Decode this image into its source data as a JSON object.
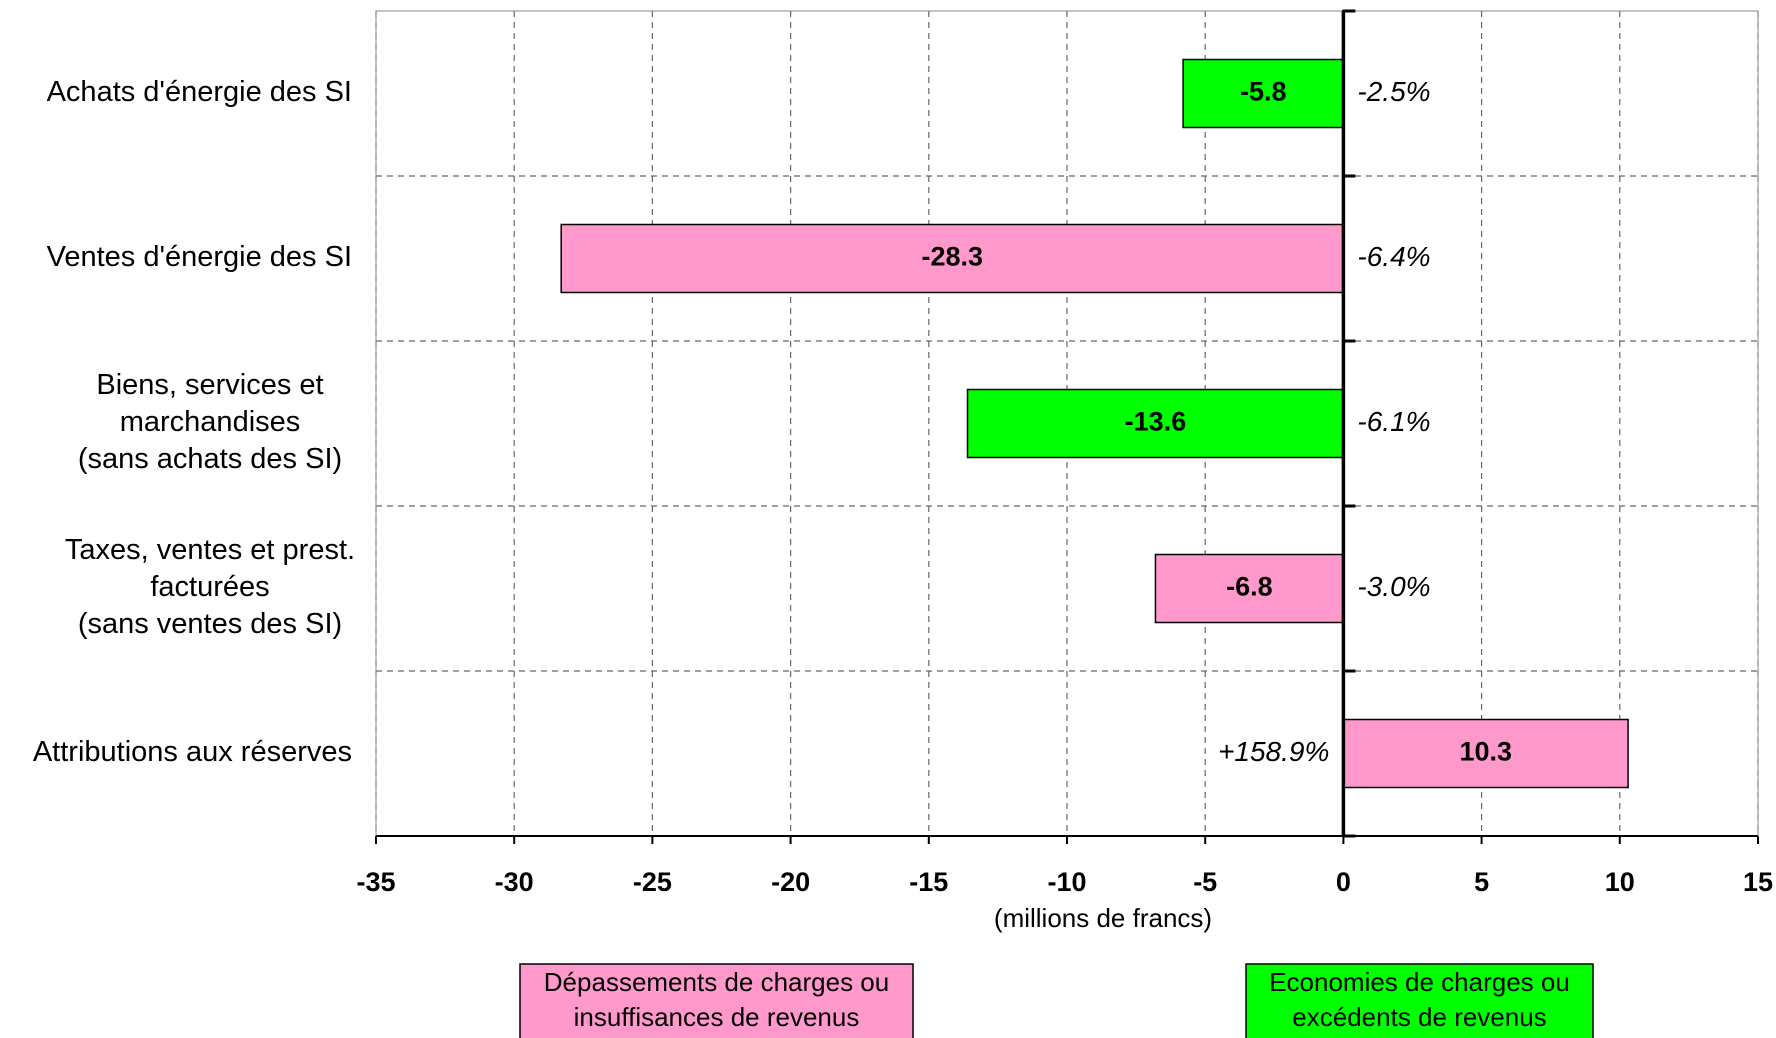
{
  "chart_data": {
    "type": "bar",
    "orientation": "horizontal",
    "categories": [
      [
        "Achats d'énergie des SI"
      ],
      [
        "Ventes d'énergie des SI"
      ],
      [
        "Biens, services et",
        "marchandises",
        "(sans achats des SI)"
      ],
      [
        "Taxes, ventes et prest.",
        "facturées",
        "(sans ventes des SI)"
      ],
      [
        "Attributions aux réserves"
      ]
    ],
    "values": [
      -5.8,
      -28.3,
      -13.6,
      -6.8,
      10.3
    ],
    "colors": [
      "#00ff00",
      "#ff99cc",
      "#00ff00",
      "#ff99cc",
      "#ff99cc"
    ],
    "annotations": [
      "-2.5%",
      "-6.4%",
      "-6.1%",
      "-3.0%",
      "+158.9%"
    ],
    "xlim": [
      -35,
      15
    ],
    "xticks": [
      -35,
      -30,
      -25,
      -20,
      -15,
      -10,
      -5,
      0,
      5,
      10,
      15
    ],
    "x_label": "(millions de francs)",
    "grid": true,
    "legend": [
      {
        "label": [
          "Dépassements de charges ou",
          "insuffisances de revenus"
        ],
        "color": "#ff99cc"
      },
      {
        "label": [
          "Economies de charges ou",
          "excédents de revenus"
        ],
        "color": "#00ff00"
      }
    ]
  }
}
